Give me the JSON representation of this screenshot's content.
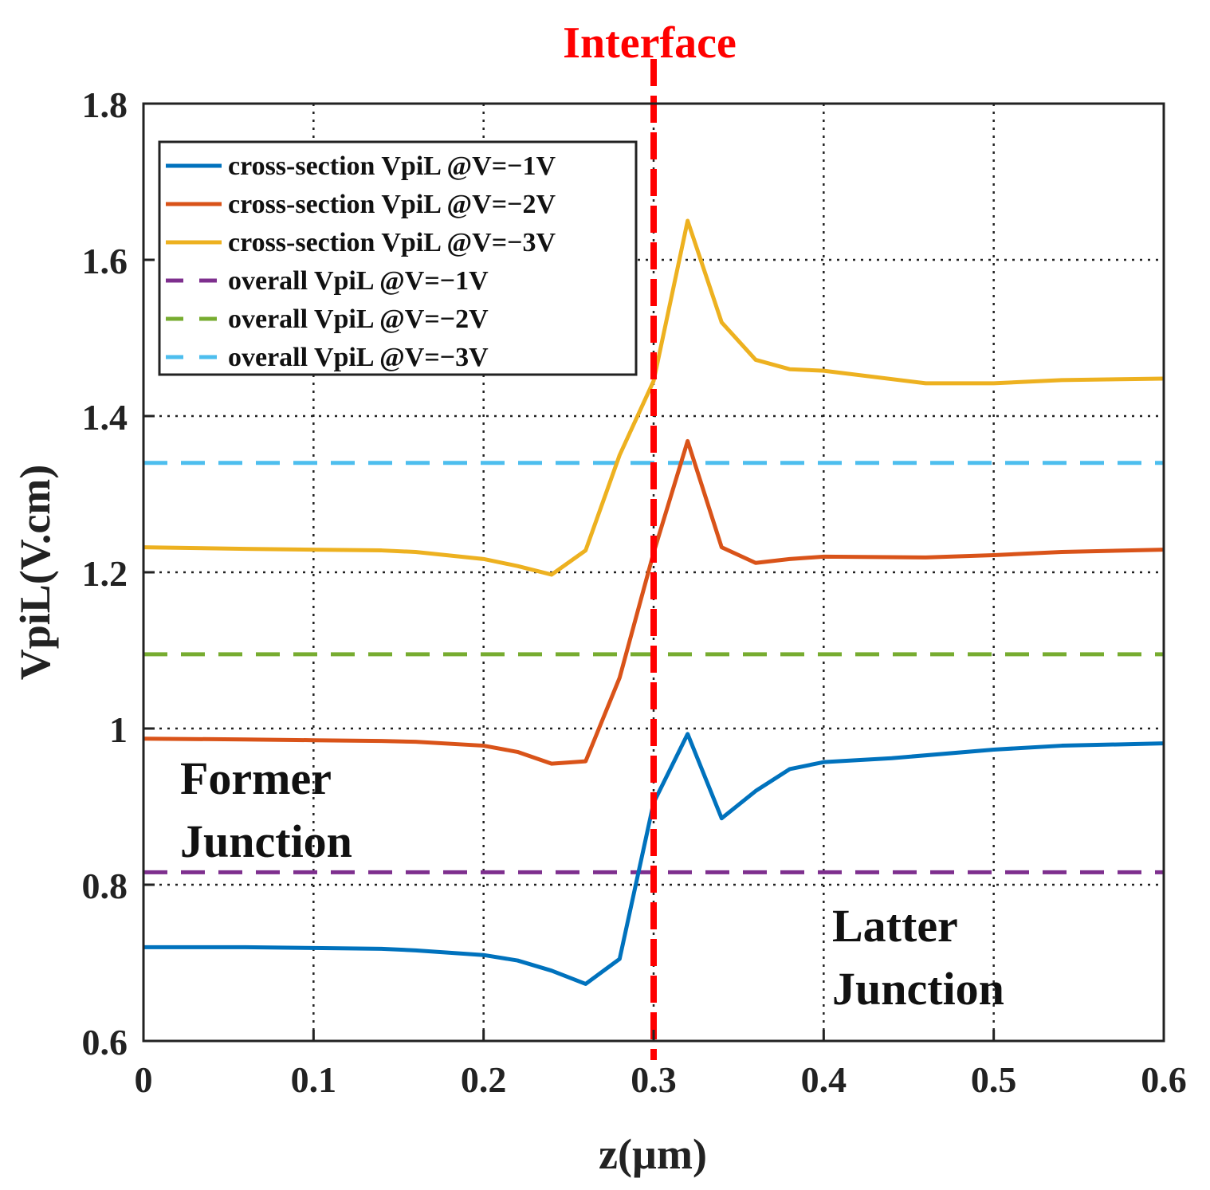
{
  "chart_data": {
    "type": "line",
    "title": "",
    "xlabel": "z(µm)",
    "ylabel": "VpiL(V.cm)",
    "xlim": [
      0,
      0.6
    ],
    "ylim": [
      0.6,
      1.8
    ],
    "xticks": [
      0,
      0.1,
      0.2,
      0.3,
      0.4,
      0.5,
      0.6
    ],
    "xtick_labels": [
      "0",
      "0.1",
      "0.2",
      "0.3",
      "0.4",
      "0.5",
      "0.6"
    ],
    "yticks": [
      0.6,
      0.8,
      1.0,
      1.2,
      1.4,
      1.6,
      1.8
    ],
    "ytick_labels": [
      "0.6",
      "0.8",
      "1",
      "1.2",
      "1.4",
      "1.6",
      "1.8"
    ],
    "grid": true,
    "legend_position": "top-left",
    "series": [
      {
        "name": "cross-section VpiL @V=−1V",
        "style": "solid",
        "color": "#0072BD",
        "x": [
          0,
          0.06,
          0.1,
          0.14,
          0.16,
          0.2,
          0.22,
          0.24,
          0.26,
          0.28,
          0.3,
          0.32,
          0.34,
          0.36,
          0.38,
          0.4,
          0.44,
          0.5,
          0.54,
          0.6
        ],
        "y": [
          0.72,
          0.72,
          0.719,
          0.718,
          0.716,
          0.71,
          0.703,
          0.69,
          0.673,
          0.705,
          0.905,
          0.993,
          0.885,
          0.92,
          0.948,
          0.957,
          0.962,
          0.973,
          0.978,
          0.981
        ]
      },
      {
        "name": "cross-section VpiL @V=−2V",
        "style": "solid",
        "color": "#D95319",
        "x": [
          0,
          0.06,
          0.1,
          0.14,
          0.16,
          0.2,
          0.22,
          0.24,
          0.26,
          0.28,
          0.3,
          0.32,
          0.34,
          0.36,
          0.38,
          0.4,
          0.46,
          0.5,
          0.54,
          0.6
        ],
        "y": [
          0.987,
          0.986,
          0.985,
          0.984,
          0.983,
          0.978,
          0.97,
          0.955,
          0.958,
          1.065,
          1.225,
          1.368,
          1.232,
          1.212,
          1.217,
          1.22,
          1.219,
          1.222,
          1.226,
          1.229
        ]
      },
      {
        "name": "cross-section VpiL @V=−3V",
        "style": "solid",
        "color": "#EDB120",
        "x": [
          0,
          0.06,
          0.1,
          0.14,
          0.16,
          0.2,
          0.22,
          0.24,
          0.26,
          0.28,
          0.3,
          0.32,
          0.34,
          0.36,
          0.38,
          0.4,
          0.46,
          0.5,
          0.54,
          0.6
        ],
        "y": [
          1.232,
          1.23,
          1.229,
          1.228,
          1.226,
          1.217,
          1.208,
          1.197,
          1.228,
          1.35,
          1.445,
          1.65,
          1.52,
          1.472,
          1.46,
          1.458,
          1.442,
          1.442,
          1.446,
          1.448
        ]
      },
      {
        "name": "overall VpiL @V=−1V",
        "style": "dashed",
        "color": "#7E2F8E",
        "x": [
          0,
          0.6
        ],
        "y": [
          0.816,
          0.816
        ]
      },
      {
        "name": "overall VpiL @V=−2V",
        "style": "dashed",
        "color": "#77AC30",
        "x": [
          0,
          0.6
        ],
        "y": [
          1.095,
          1.095
        ]
      },
      {
        "name": "overall VpiL @V=−3V",
        "style": "dashed",
        "color": "#4DBEEE",
        "x": [
          0,
          0.6
        ],
        "y": [
          1.34,
          1.34
        ]
      }
    ],
    "annotations": {
      "interface": {
        "label": "Interface",
        "x": 0.3,
        "color": "#FF0000"
      },
      "former_line1": "Former",
      "former_line2": "Junction",
      "latter_line1": "Latter",
      "latter_line2": "Junction"
    }
  }
}
